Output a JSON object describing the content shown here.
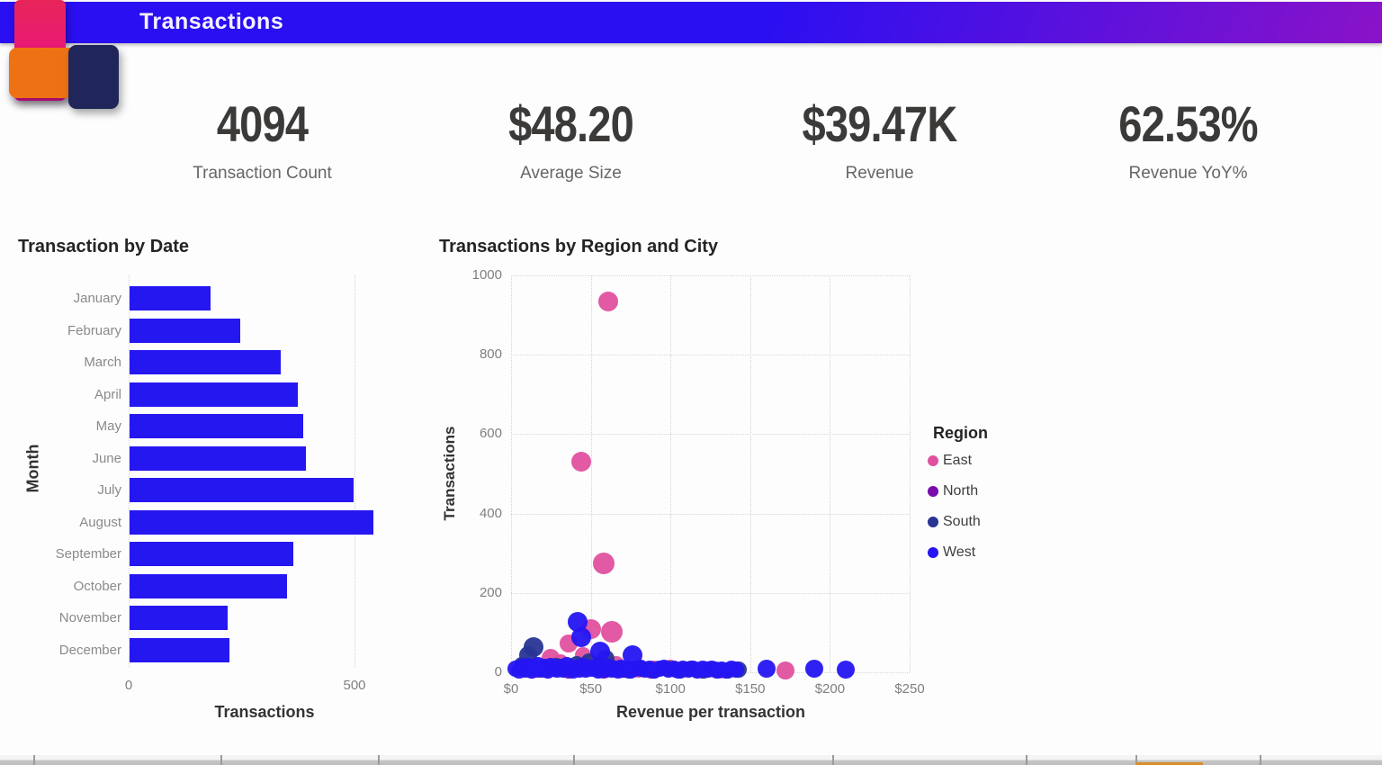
{
  "header": {
    "title": "Transactions"
  },
  "logo": {
    "pink": "#ec0d98",
    "orange": "#ee7214",
    "navy": "#20265a"
  },
  "kpis": [
    {
      "value": "4094",
      "label": "Transaction Count"
    },
    {
      "value": "$48.20",
      "label": "Average Size"
    },
    {
      "value": "$39.47K",
      "label": "Revenue"
    },
    {
      "value": "62.53%",
      "label": "Revenue YoY%"
    }
  ],
  "chart_data": [
    {
      "id": "transactions-by-month",
      "type": "bar",
      "orientation": "horizontal",
      "title": "Transaction by Date",
      "categories": [
        "January",
        "February",
        "March",
        "April",
        "May",
        "June",
        "July",
        "August",
        "September",
        "October",
        "November",
        "December"
      ],
      "values": [
        180,
        245,
        335,
        372,
        385,
        390,
        497,
        540,
        363,
        348,
        218,
        221
      ],
      "xlabel": "Transactions",
      "ylabel": "Month",
      "xlim": [
        0,
        560
      ],
      "xticks": [
        0,
        500
      ],
      "grid": "dotted-vertical",
      "bar_color": "#2517f0"
    },
    {
      "id": "transactions-by-region-and-city",
      "type": "scatter",
      "title": "Transactions by Region and City",
      "xlabel": "Revenue per transaction",
      "ylabel": "Transactions",
      "xlim": [
        0,
        250
      ],
      "ylim": [
        0,
        1000
      ],
      "xtick_values": [
        0,
        50,
        100,
        150,
        200,
        250
      ],
      "xtick_labels": [
        "$0",
        "$50",
        "$100",
        "$150",
        "$200",
        "$250"
      ],
      "ytick_values": [
        0,
        200,
        400,
        600,
        800,
        1000
      ],
      "grid": "dotted-both",
      "legend": {
        "title": "Region",
        "position": "right",
        "items": [
          {
            "name": "East",
            "color": "#e0509f"
          },
          {
            "name": "North",
            "color": "#7a0bac"
          },
          {
            "name": "South",
            "color": "#283593"
          },
          {
            "name": "West",
            "color": "#2515f2"
          }
        ]
      },
      "series": [
        {
          "name": "East",
          "color": "#e0509f",
          "points": [
            [
              61,
              935,
              11
            ],
            [
              44,
              530,
              11
            ],
            [
              58,
              275,
              12
            ],
            [
              50,
              108,
              11
            ],
            [
              63,
              101,
              12
            ],
            [
              36,
              73,
              10
            ],
            [
              25,
              36,
              10
            ],
            [
              31,
              26,
              9
            ],
            [
              45,
              43,
              9
            ],
            [
              40,
              12,
              9
            ],
            [
              48,
              8,
              9
            ],
            [
              55,
              16,
              9
            ],
            [
              60,
              6,
              9
            ],
            [
              66,
              21,
              9
            ],
            [
              72,
              10,
              9
            ],
            [
              80,
              6,
              9
            ],
            [
              90,
              9,
              9
            ],
            [
              100,
              11,
              9
            ],
            [
              108,
              7,
              9
            ],
            [
              116,
              6,
              9
            ],
            [
              124,
              7,
              9
            ],
            [
              131,
              4,
              9
            ],
            [
              172,
              5,
              10
            ],
            [
              21,
              8,
              9
            ],
            [
              13,
              5,
              9
            ]
          ]
        },
        {
          "name": "North",
          "color": "#7a0bac",
          "points": [
            [
              17,
              7,
              9
            ],
            [
              28,
              12,
              9
            ],
            [
              36,
              5,
              9
            ],
            [
              47,
              14,
              9
            ],
            [
              58,
              4,
              9
            ],
            [
              70,
              7,
              9
            ],
            [
              88,
              5,
              9
            ],
            [
              103,
              6,
              9
            ],
            [
              120,
              4,
              9
            ]
          ]
        },
        {
          "name": "South",
          "color": "#283593",
          "points": [
            [
              14,
              64,
              11
            ],
            [
              11,
              42,
              10
            ],
            [
              59,
              33,
              10
            ],
            [
              7,
              18,
              9
            ],
            [
              10,
              8,
              9
            ],
            [
              16,
              12,
              9
            ],
            [
              22,
              6,
              9
            ],
            [
              28,
              16,
              9
            ],
            [
              34,
              8,
              9
            ],
            [
              41,
              20,
              9
            ],
            [
              49,
              26,
              10
            ],
            [
              55,
              6,
              9
            ],
            [
              63,
              12,
              9
            ],
            [
              68,
              8,
              9
            ],
            [
              74,
              5,
              9
            ],
            [
              82,
              10,
              9
            ],
            [
              90,
              5,
              9
            ],
            [
              98,
              8,
              9
            ],
            [
              106,
              4,
              9
            ],
            [
              113,
              8,
              9
            ],
            [
              121,
              5,
              9
            ],
            [
              128,
              7,
              9
            ],
            [
              136,
              4,
              9
            ],
            [
              143,
              6,
              9
            ]
          ]
        },
        {
          "name": "West",
          "color": "#2515f2",
          "points": [
            [
              42,
              126,
              11
            ],
            [
              44,
              88,
              11
            ],
            [
              56,
              53,
              11
            ],
            [
              76,
              43,
              11
            ],
            [
              3,
              10,
              9
            ],
            [
              5,
              4,
              9
            ],
            [
              7,
              14,
              9
            ],
            [
              9,
              7,
              9
            ],
            [
              11,
              16,
              9
            ],
            [
              13,
              5,
              9
            ],
            [
              15,
              11,
              9
            ],
            [
              17,
              19,
              9
            ],
            [
              19,
              7,
              9
            ],
            [
              21,
              13,
              9
            ],
            [
              23,
              5,
              9
            ],
            [
              25,
              16,
              9
            ],
            [
              27,
              9,
              9
            ],
            [
              29,
              6,
              9
            ],
            [
              31,
              13,
              9
            ],
            [
              33,
              7,
              9
            ],
            [
              35,
              18,
              9
            ],
            [
              37,
              9,
              9
            ],
            [
              39,
              5,
              9
            ],
            [
              41,
              12,
              9
            ],
            [
              43,
              7,
              9
            ],
            [
              45,
              15,
              9
            ],
            [
              47,
              6,
              9
            ],
            [
              49,
              11,
              9
            ],
            [
              51,
              8,
              9
            ],
            [
              53,
              14,
              9
            ],
            [
              55,
              5,
              9
            ],
            [
              57,
              10,
              9
            ],
            [
              59,
              7,
              9
            ],
            [
              61,
              13,
              9
            ],
            [
              63,
              6,
              9
            ],
            [
              65,
              9,
              9
            ],
            [
              67,
              5,
              9
            ],
            [
              69,
              12,
              9
            ],
            [
              71,
              7,
              9
            ],
            [
              73,
              10,
              9
            ],
            [
              75,
              5,
              9
            ],
            [
              78,
              8,
              9
            ],
            [
              81,
              12,
              9
            ],
            [
              84,
              6,
              9
            ],
            [
              87,
              9,
              9
            ],
            [
              90,
              5,
              9
            ],
            [
              93,
              8,
              9
            ],
            [
              96,
              11,
              9
            ],
            [
              99,
              6,
              9
            ],
            [
              102,
              9,
              9
            ],
            [
              105,
              5,
              9
            ],
            [
              108,
              8,
              9
            ],
            [
              111,
              6,
              9
            ],
            [
              114,
              9,
              9
            ],
            [
              117,
              5,
              9
            ],
            [
              120,
              8,
              9
            ],
            [
              123,
              6,
              9
            ],
            [
              126,
              9,
              9
            ],
            [
              129,
              5,
              9
            ],
            [
              132,
              7,
              9
            ],
            [
              135,
              5,
              9
            ],
            [
              138,
              8,
              9
            ],
            [
              141,
              6,
              9
            ],
            [
              160,
              8,
              10
            ],
            [
              190,
              8,
              10
            ],
            [
              210,
              6,
              10
            ]
          ]
        }
      ]
    }
  ],
  "footer": {
    "accent_color": "#d98e2b"
  }
}
